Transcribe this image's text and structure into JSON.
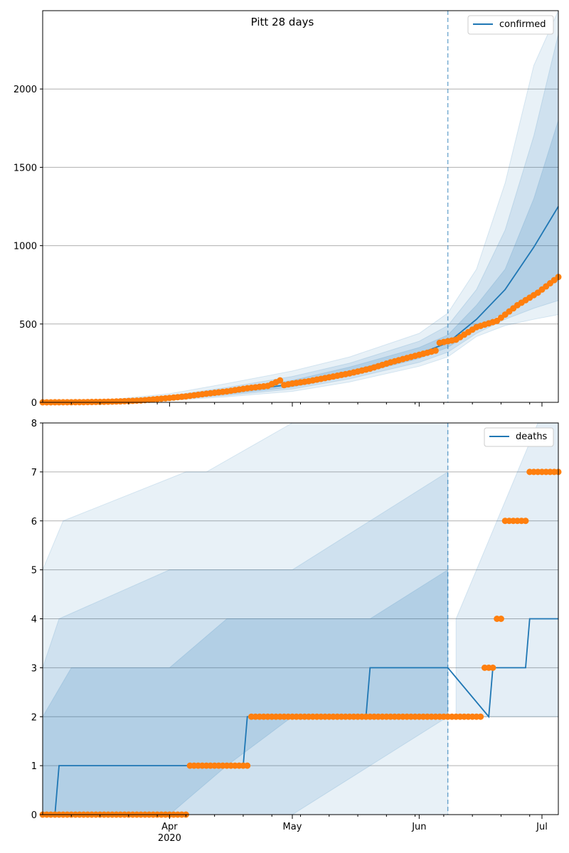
{
  "chart_data": [
    {
      "type": "line",
      "title": "Pitt 28 days",
      "legend": {
        "label": "confirmed",
        "position": "top-right"
      },
      "ylim": [
        0,
        2500
      ],
      "yticks": [
        0,
        500,
        1000,
        1500,
        2000
      ],
      "grid": "y",
      "forecast_start": "2020-06-08",
      "colors": {
        "line": "#1f77b4",
        "observed": "#ff7f0e",
        "band": "#1f77b4"
      },
      "model": {
        "x": [
          "2020-03-01",
          "2020-03-15",
          "2020-04-01",
          "2020-04-15",
          "2020-05-01",
          "2020-05-15",
          "2020-06-01",
          "2020-06-08",
          "2020-06-15",
          "2020-06-22",
          "2020-06-29",
          "2020-07-05"
        ],
        "y": [
          0,
          3,
          25,
          65,
          115,
          195,
          310,
          380,
          530,
          720,
          990,
          1250
        ]
      },
      "bands": [
        {
          "x": [
            "2020-03-01",
            "2020-03-15",
            "2020-04-01",
            "2020-04-15",
            "2020-05-01",
            "2020-05-15",
            "2020-06-01",
            "2020-06-08",
            "2020-06-15",
            "2020-06-22",
            "2020-06-29",
            "2020-07-05"
          ],
          "low": [
            0,
            1,
            12,
            35,
            70,
            130,
            230,
            290,
            420,
            490,
            530,
            560
          ],
          "high": [
            3,
            10,
            55,
            120,
            200,
            290,
            440,
            570,
            850,
            1400,
            2150,
            2500
          ]
        },
        {
          "x": [
            "2020-03-01",
            "2020-03-15",
            "2020-04-01",
            "2020-04-15",
            "2020-05-01",
            "2020-05-15",
            "2020-06-01",
            "2020-06-08",
            "2020-06-15",
            "2020-06-22",
            "2020-06-29",
            "2020-07-05"
          ],
          "low": [
            0,
            2,
            16,
            44,
            85,
            150,
            255,
            320,
            440,
            530,
            600,
            650
          ],
          "high": [
            2,
            7,
            42,
            95,
            165,
            250,
            390,
            490,
            720,
            1100,
            1700,
            2350
          ]
        },
        {
          "x": [
            "2020-03-01",
            "2020-03-15",
            "2020-04-01",
            "2020-04-15",
            "2020-05-01",
            "2020-05-15",
            "2020-06-01",
            "2020-06-08",
            "2020-06-15",
            "2020-06-22",
            "2020-06-29",
            "2020-07-05"
          ],
          "low": [
            0,
            2,
            20,
            52,
            98,
            168,
            280,
            350,
            470,
            580,
            700,
            780
          ],
          "high": [
            1,
            5,
            33,
            80,
            140,
            225,
            350,
            430,
            620,
            850,
            1300,
            1800
          ]
        }
      ],
      "observed": {
        "x": [
          "2020-03-01",
          "2020-03-10",
          "2020-03-15",
          "2020-03-20",
          "2020-03-25",
          "2020-04-01",
          "2020-04-05",
          "2020-04-10",
          "2020-04-15",
          "2020-04-20",
          "2020-04-25",
          "2020-04-28",
          "2020-04-29",
          "2020-05-01",
          "2020-05-05",
          "2020-05-10",
          "2020-05-15",
          "2020-05-20",
          "2020-05-25",
          "2020-05-30",
          "2020-06-05",
          "2020-06-06",
          "2020-06-10",
          "2020-06-15",
          "2020-06-20",
          "2020-06-25",
          "2020-06-30",
          "2020-07-05"
        ],
        "y": [
          0,
          1,
          3,
          6,
          12,
          28,
          38,
          55,
          70,
          90,
          105,
          140,
          110,
          120,
          135,
          160,
          185,
          215,
          255,
          290,
          330,
          380,
          400,
          480,
          520,
          620,
          700,
          800
        ]
      }
    },
    {
      "type": "line",
      "title": "",
      "legend": {
        "label": "deaths",
        "position": "top-right"
      },
      "ylim": [
        0,
        8
      ],
      "yticks": [
        0,
        1,
        2,
        3,
        4,
        5,
        6,
        7,
        8
      ],
      "grid": "y",
      "forecast_start": "2020-06-08",
      "xticks": [
        {
          "date": "2020-04-01",
          "label": "Apr",
          "sublabel": "2020"
        },
        {
          "date": "2020-05-01",
          "label": "May"
        },
        {
          "date": "2020-06-01",
          "label": "Jun"
        },
        {
          "date": "2020-07-01",
          "label": "Jul"
        }
      ],
      "colors": {
        "line": "#1f77b4",
        "observed": "#ff7f0e",
        "band": "#1f77b4"
      },
      "model": {
        "x": [
          "2020-03-01",
          "2020-03-04",
          "2020-03-05",
          "2020-04-19",
          "2020-04-20",
          "2020-05-19",
          "2020-05-20",
          "2020-06-08",
          "2020-06-18",
          "2020-06-19",
          "2020-06-27",
          "2020-06-28",
          "2020-07-05"
        ],
        "y": [
          0,
          0,
          1,
          1,
          2,
          2,
          3,
          3,
          2,
          3,
          3,
          4,
          4
        ]
      },
      "bands": [
        {
          "x": [
            "2020-03-01",
            "2020-03-06",
            "2020-04-05",
            "2020-04-10",
            "2020-05-01",
            "2020-05-15",
            "2020-06-01",
            "2020-06-08"
          ],
          "low": [
            0,
            0,
            0,
            0,
            0,
            0,
            0,
            0
          ],
          "high": [
            5,
            6,
            7,
            7,
            8,
            8,
            8,
            8
          ]
        },
        {
          "x": [
            "2020-03-01",
            "2020-03-05",
            "2020-04-01",
            "2020-04-15",
            "2020-05-01",
            "2020-05-20",
            "2020-06-08"
          ],
          "low": [
            0,
            0,
            0,
            0,
            0,
            1,
            2
          ],
          "high": [
            3,
            4,
            5,
            5,
            5,
            6,
            7
          ]
        },
        {
          "x": [
            "2020-03-01",
            "2020-03-08",
            "2020-04-01",
            "2020-04-15",
            "2020-05-01",
            "2020-05-20",
            "2020-06-08"
          ],
          "low": [
            0,
            0,
            0,
            1,
            2,
            2,
            2
          ],
          "high": [
            2,
            3,
            3,
            4,
            4,
            4,
            5
          ]
        },
        {
          "x": [
            "2020-06-10",
            "2020-06-20",
            "2020-06-30",
            "2020-07-05"
          ],
          "low": [
            2,
            2,
            2,
            2
          ],
          "high": [
            4,
            6,
            8,
            8
          ]
        }
      ],
      "observed": {
        "x": [
          "2020-03-01",
          "2020-03-10",
          "2020-03-20",
          "2020-03-30",
          "2020-04-05",
          "2020-04-06",
          "2020-04-15",
          "2020-04-20",
          "2020-04-21",
          "2020-05-01",
          "2020-05-15",
          "2020-06-01",
          "2020-06-10",
          "2020-06-16",
          "2020-06-17",
          "2020-06-19",
          "2020-06-20",
          "2020-06-21",
          "2020-06-22",
          "2020-06-27",
          "2020-06-28",
          "2020-07-05"
        ],
        "y": [
          0,
          0,
          0,
          0,
          0,
          1,
          1,
          1,
          2,
          2,
          2,
          2,
          2,
          2,
          3,
          3,
          4,
          4,
          6,
          6,
          7,
          7
        ]
      }
    }
  ]
}
